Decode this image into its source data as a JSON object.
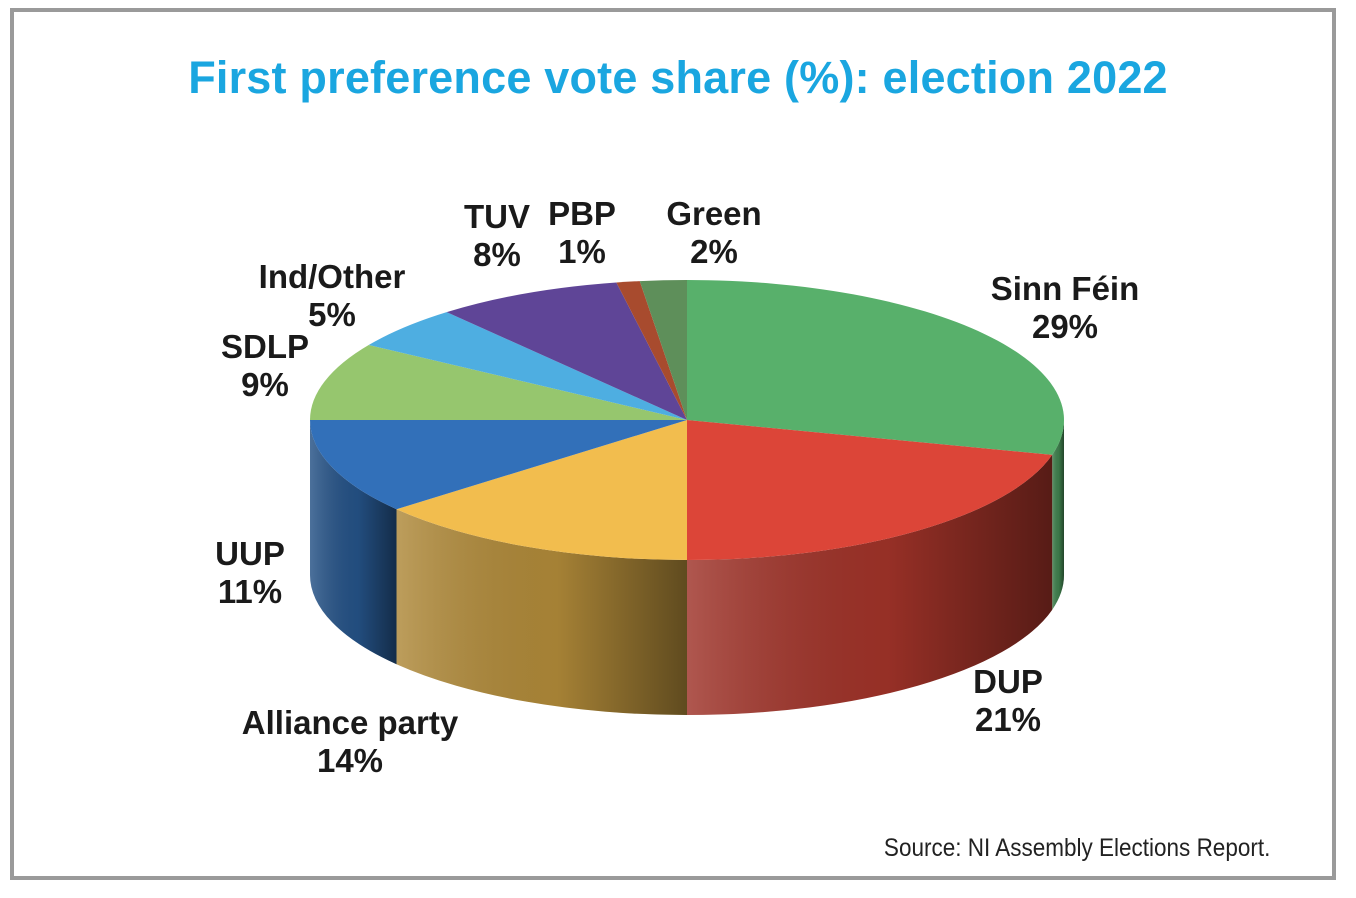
{
  "chart_data": {
    "type": "pie",
    "title": "First preference vote share (%): election 2022",
    "source": "Source: NI Assembly Elections Report.",
    "title_color": "#1aa6e0",
    "slices": [
      {
        "label": "Sinn Féin",
        "value": 29,
        "value_label": "29%",
        "color": "#58b06b"
      },
      {
        "label": "DUP",
        "value": 21,
        "value_label": "21%",
        "color": "#dc4538"
      },
      {
        "label": "Alliance party",
        "value": 14,
        "value_label": "14%",
        "color": "#f2bd4e"
      },
      {
        "label": "UUP",
        "value": 11,
        "value_label": "11%",
        "color": "#3270b9"
      },
      {
        "label": "SDLP",
        "value": 9,
        "value_label": "9%",
        "color": "#96c66e"
      },
      {
        "label": "Ind/Other",
        "value": 5,
        "value_label": "5%",
        "color": "#4eaee1"
      },
      {
        "label": "TUV",
        "value": 8,
        "value_label": "8%",
        "color": "#5f4597"
      },
      {
        "label": "PBP",
        "value": 1,
        "value_label": "1%",
        "color": "#a84b2e"
      },
      {
        "label": "Green",
        "value": 2,
        "value_label": "2%",
        "color": "#5e8f5a"
      }
    ]
  }
}
